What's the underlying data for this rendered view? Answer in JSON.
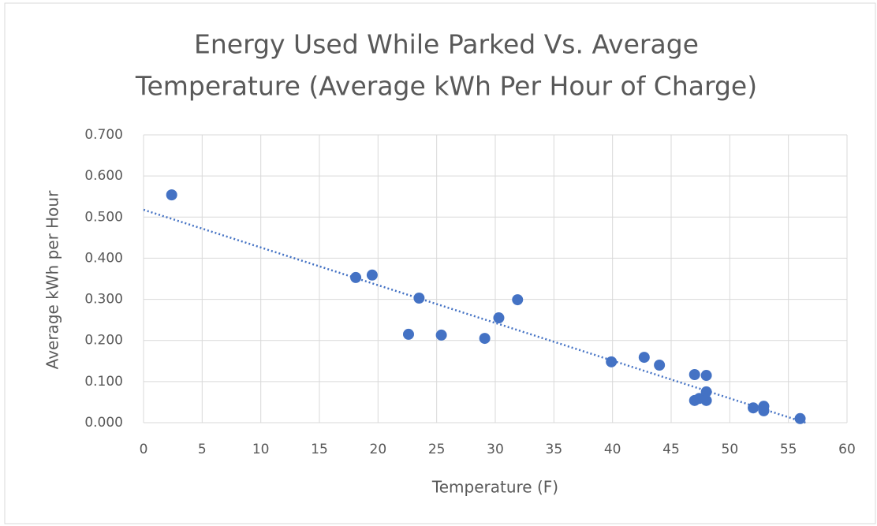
{
  "chart_data": {
    "type": "scatter",
    "title": [
      "Energy Used While Parked Vs. Average",
      "Temperature (Average kWh Per Hour of Charge)"
    ],
    "x_label": "Temperature  (F)",
    "y_label": "Average kWh per Hour",
    "x": [
      2.4,
      18.1,
      19.5,
      23.5,
      22.6,
      25.4,
      29.1,
      30.3,
      31.9,
      39.9,
      42.7,
      44.0,
      47.0,
      48.0,
      47.0,
      47.4,
      48.0,
      48.0,
      52.0,
      52.9,
      52.9,
      56.0
    ],
    "values": [
      0.554,
      0.353,
      0.359,
      0.303,
      0.215,
      0.213,
      0.205,
      0.255,
      0.299,
      0.148,
      0.159,
      0.14,
      0.117,
      0.115,
      0.054,
      0.059,
      0.075,
      0.054,
      0.036,
      0.04,
      0.029,
      0.01
    ],
    "color": "#4472c4",
    "trendline": "linear",
    "xlim": [
      0,
      60
    ],
    "xticks": [
      0,
      5,
      10,
      15,
      20,
      25,
      30,
      35,
      40,
      45,
      50,
      55,
      60
    ],
    "ylim": [
      0,
      0.7
    ],
    "yticks": [
      {
        "value": 0,
        "label": "0.000"
      },
      {
        "value": 0.1,
        "label": "0.100"
      },
      {
        "value": 0.2,
        "label": "0.200"
      },
      {
        "value": 0.3,
        "label": "0.300"
      },
      {
        "value": 0.4,
        "label": "0.400"
      },
      {
        "value": 0.5,
        "label": "0.500"
      },
      {
        "value": 0.6,
        "label": "0.600"
      },
      {
        "value": 0.7,
        "label": "0.700"
      }
    ],
    "grid": true
  }
}
